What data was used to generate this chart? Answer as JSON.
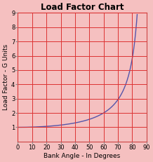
{
  "title": "Load Factor Chart",
  "xlabel": "Bank Angle - In Degrees",
  "ylabel": "Load Factor - G Units",
  "xlim": [
    0,
    90
  ],
  "ylim": [
    0,
    9
  ],
  "xticks": [
    0,
    10,
    20,
    30,
    40,
    50,
    60,
    70,
    80,
    90
  ],
  "yticks": [
    1,
    2,
    3,
    4,
    5,
    6,
    7,
    8,
    9
  ],
  "curve_color": "#5555aa",
  "grid_color": "#dd3333",
  "bg_color": "#f5c0c0",
  "plot_bg_color": "#f5c0c0",
  "title_fontsize": 8.5,
  "label_fontsize": 6.5,
  "tick_fontsize": 6
}
